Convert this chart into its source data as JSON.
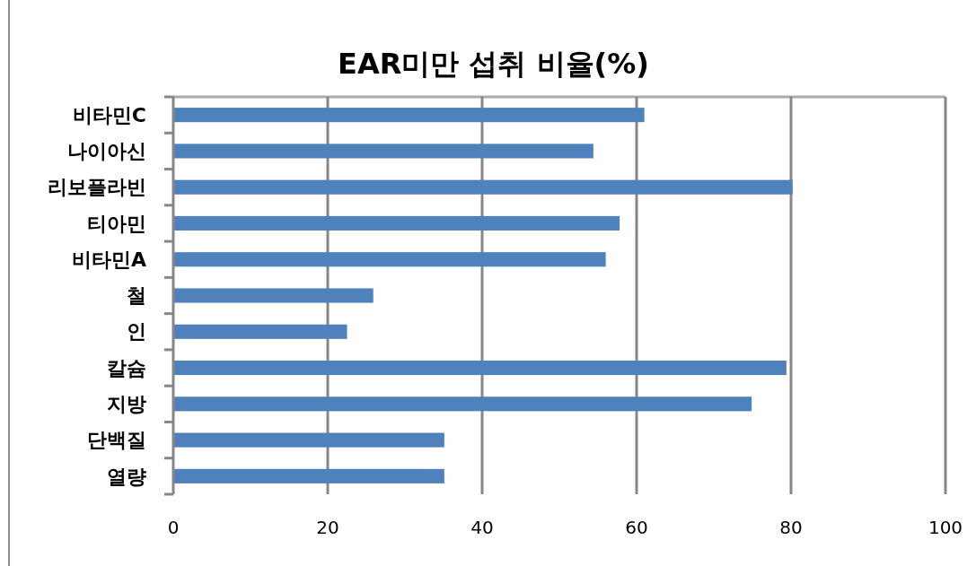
{
  "chart_data": {
    "type": "bar",
    "title": "EAR미만 섭취 비율(%)",
    "orientation": "horizontal",
    "categories": [
      "비타민C",
      "나이아신",
      "리보플라빈",
      "티아민",
      "비타민A",
      "철",
      "인",
      "칼슘",
      "지방",
      "단백질",
      "열량"
    ],
    "values": [
      61.0,
      54.4,
      80.2,
      57.8,
      56.0,
      25.9,
      22.5,
      79.4,
      74.9,
      35.1,
      35.1
    ],
    "color": "#4f81bd",
    "xlim": [
      0,
      100
    ],
    "xticks": [
      0,
      20,
      40,
      60,
      80,
      100
    ],
    "grid": "x"
  }
}
